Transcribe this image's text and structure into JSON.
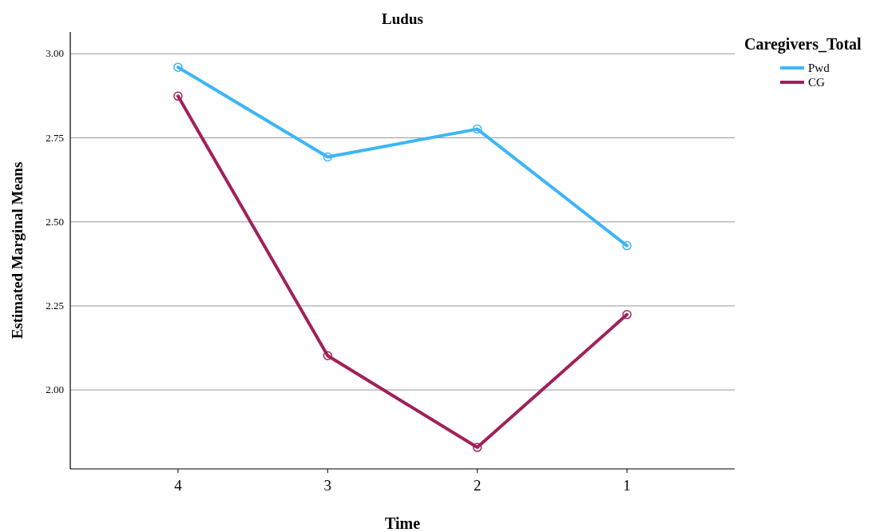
{
  "chart_data": {
    "type": "line",
    "title": "Ludus",
    "xlabel": "Time",
    "ylabel": "Estimated Marginal Means",
    "legend_title": "Caregivers_Total",
    "categories": [
      "4",
      "3",
      "2",
      "1"
    ],
    "series": [
      {
        "name": "Pwd",
        "color": "#3db5f5",
        "values": [
          2.96,
          2.693,
          2.776,
          2.429
        ]
      },
      {
        "name": "CG",
        "color": "#a0215a",
        "values": [
          2.874,
          2.102,
          1.829,
          2.224
        ]
      }
    ],
    "ylim": [
      1.765,
      3.065
    ],
    "yticks": [
      {
        "value": 2,
        "label": "2.00"
      },
      {
        "value": 2.25,
        "label": "2.25"
      },
      {
        "value": 2.5,
        "label": "2.50"
      },
      {
        "value": 2.75,
        "label": "2.75"
      },
      {
        "value": 3,
        "label": "3.00"
      }
    ],
    "grid": "y",
    "legend": "top right",
    "marker": "circle",
    "line_style": "solid"
  }
}
